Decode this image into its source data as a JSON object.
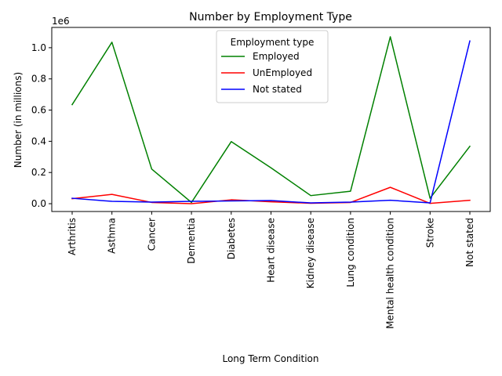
{
  "chart_data": {
    "type": "line",
    "title": "Number by Employment Type",
    "xlabel": "Long Term Condition",
    "ylabel": "Number (in millions)",
    "y_offset_text": "1e6",
    "categories": [
      "Arthritis",
      "Asthma",
      "Cancer",
      "Dementia",
      "Diabetes",
      "Heart disease",
      "Kidney disease",
      "Lung condition",
      "Mental health condition",
      "Stroke",
      "Not stated"
    ],
    "ylim": [
      -50000,
      1130000
    ],
    "yticks": [
      0,
      200000,
      400000,
      600000,
      800000,
      1000000
    ],
    "ytick_labels": [
      "0.0",
      "0.2",
      "0.4",
      "0.6",
      "0.8",
      "1.0"
    ],
    "grid": false,
    "legend": {
      "title": "Employment type",
      "placement": "upper center"
    },
    "series": [
      {
        "name": "Employed",
        "color": "#008000",
        "values": [
          635000,
          1035000,
          222000,
          8000,
          398000,
          230000,
          52000,
          80000,
          1070000,
          35000,
          368000
        ]
      },
      {
        "name": "UnEmployed",
        "color": "#ff0000",
        "values": [
          32000,
          60000,
          8000,
          0,
          25000,
          12000,
          3000,
          8000,
          105000,
          2000,
          22000
        ]
      },
      {
        "name": "Not stated",
        "color": "#0000ff",
        "values": [
          35000,
          15000,
          10000,
          15000,
          18000,
          20000,
          5000,
          10000,
          22000,
          5000,
          1043000
        ]
      }
    ]
  }
}
